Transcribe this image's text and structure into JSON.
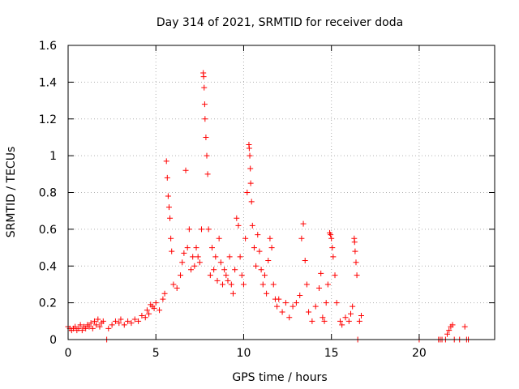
{
  "chart_data": {
    "type": "scatter",
    "title": "Day 314 of 2021, SRMTID for receiver doda",
    "xlabel": "GPS time / hours",
    "ylabel": "SRMTID / TECUs",
    "xlim": [
      0,
      24.3
    ],
    "ylim": [
      0,
      1.6
    ],
    "xticks": [
      0,
      5,
      10,
      15,
      20
    ],
    "xtick_labels": [
      "0",
      "5",
      "10",
      "15",
      "20"
    ],
    "yticks": [
      0,
      0.2,
      0.4,
      0.6,
      0.8,
      1,
      1.2,
      1.4,
      1.6
    ],
    "ytick_labels": [
      "0",
      "0.2",
      "0.4",
      "0.6",
      "0.8",
      "1",
      "1.2",
      "1.4",
      "1.6"
    ],
    "grid": true,
    "marker": "plus",
    "color": "#ff0000",
    "series": [
      {
        "name": "SRMTID",
        "points": [
          [
            0.0,
            0.07
          ],
          [
            0.1,
            0.06
          ],
          [
            0.2,
            0.05
          ],
          [
            0.3,
            0.06
          ],
          [
            0.4,
            0.07
          ],
          [
            0.5,
            0.05
          ],
          [
            0.6,
            0.06
          ],
          [
            0.7,
            0.08
          ],
          [
            0.8,
            0.05
          ],
          [
            0.9,
            0.07
          ],
          [
            1.0,
            0.06
          ],
          [
            1.1,
            0.08
          ],
          [
            1.2,
            0.07
          ],
          [
            1.3,
            0.09
          ],
          [
            1.4,
            0.06
          ],
          [
            1.5,
            0.1
          ],
          [
            1.6,
            0.08
          ],
          [
            1.7,
            0.11
          ],
          [
            1.8,
            0.07
          ],
          [
            1.9,
            0.09
          ],
          [
            2.0,
            0.1
          ],
          [
            2.2,
            0.0
          ],
          [
            2.3,
            0.06
          ],
          [
            2.5,
            0.08
          ],
          [
            2.7,
            0.1
          ],
          [
            2.9,
            0.09
          ],
          [
            3.0,
            0.11
          ],
          [
            3.2,
            0.08
          ],
          [
            3.4,
            0.1
          ],
          [
            3.6,
            0.09
          ],
          [
            3.8,
            0.11
          ],
          [
            4.0,
            0.1
          ],
          [
            4.2,
            0.13
          ],
          [
            4.4,
            0.12
          ],
          [
            4.5,
            0.16
          ],
          [
            4.6,
            0.14
          ],
          [
            4.7,
            0.19
          ],
          [
            4.8,
            0.18
          ],
          [
            4.9,
            0.17
          ],
          [
            5.0,
            0.2
          ],
          [
            5.2,
            0.16
          ],
          [
            5.4,
            0.22
          ],
          [
            5.5,
            0.25
          ],
          [
            5.6,
            0.97
          ],
          [
            5.65,
            0.88
          ],
          [
            5.7,
            0.78
          ],
          [
            5.75,
            0.72
          ],
          [
            5.8,
            0.66
          ],
          [
            5.85,
            0.55
          ],
          [
            5.9,
            0.48
          ],
          [
            6.0,
            0.3
          ],
          [
            6.2,
            0.28
          ],
          [
            6.4,
            0.35
          ],
          [
            6.5,
            0.42
          ],
          [
            6.6,
            0.47
          ],
          [
            6.7,
            0.92
          ],
          [
            6.8,
            0.5
          ],
          [
            6.9,
            0.6
          ],
          [
            7.0,
            0.38
          ],
          [
            7.1,
            0.45
          ],
          [
            7.2,
            0.4
          ],
          [
            7.3,
            0.5
          ],
          [
            7.4,
            0.45
          ],
          [
            7.5,
            0.42
          ],
          [
            7.6,
            0.6
          ],
          [
            7.7,
            1.45
          ],
          [
            7.72,
            1.43
          ],
          [
            7.75,
            1.37
          ],
          [
            7.78,
            1.28
          ],
          [
            7.8,
            1.2
          ],
          [
            7.85,
            1.1
          ],
          [
            7.9,
            1.0
          ],
          [
            7.95,
            0.9
          ],
          [
            8.0,
            0.6
          ],
          [
            8.1,
            0.35
          ],
          [
            8.2,
            0.5
          ],
          [
            8.3,
            0.38
          ],
          [
            8.4,
            0.45
          ],
          [
            8.5,
            0.32
          ],
          [
            8.6,
            0.55
          ],
          [
            8.7,
            0.42
          ],
          [
            8.8,
            0.3
          ],
          [
            8.9,
            0.38
          ],
          [
            9.0,
            0.35
          ],
          [
            9.1,
            0.32
          ],
          [
            9.2,
            0.45
          ],
          [
            9.3,
            0.3
          ],
          [
            9.4,
            0.25
          ],
          [
            9.5,
            0.38
          ],
          [
            9.6,
            0.66
          ],
          [
            9.7,
            0.62
          ],
          [
            9.8,
            0.45
          ],
          [
            9.9,
            0.35
          ],
          [
            10.0,
            0.3
          ],
          [
            10.1,
            0.55
          ],
          [
            10.2,
            0.8
          ],
          [
            10.3,
            1.06
          ],
          [
            10.32,
            1.04
          ],
          [
            10.35,
            1.0
          ],
          [
            10.38,
            0.93
          ],
          [
            10.4,
            0.85
          ],
          [
            10.45,
            0.75
          ],
          [
            10.5,
            0.62
          ],
          [
            10.6,
            0.5
          ],
          [
            10.7,
            0.4
          ],
          [
            10.8,
            0.57
          ],
          [
            10.9,
            0.48
          ],
          [
            11.0,
            0.38
          ],
          [
            11.1,
            0.3
          ],
          [
            11.2,
            0.35
          ],
          [
            11.3,
            0.25
          ],
          [
            11.4,
            0.43
          ],
          [
            11.5,
            0.55
          ],
          [
            11.6,
            0.5
          ],
          [
            11.7,
            0.3
          ],
          [
            11.8,
            0.22
          ],
          [
            11.9,
            0.18
          ],
          [
            12.0,
            0.22
          ],
          [
            12.2,
            0.15
          ],
          [
            12.4,
            0.2
          ],
          [
            12.6,
            0.12
          ],
          [
            12.8,
            0.18
          ],
          [
            13.0,
            0.2
          ],
          [
            13.2,
            0.24
          ],
          [
            13.3,
            0.55
          ],
          [
            13.4,
            0.63
          ],
          [
            13.5,
            0.43
          ],
          [
            13.6,
            0.3
          ],
          [
            13.7,
            0.15
          ],
          [
            13.9,
            0.1
          ],
          [
            14.1,
            0.18
          ],
          [
            14.3,
            0.28
          ],
          [
            14.4,
            0.36
          ],
          [
            14.5,
            0.12
          ],
          [
            14.6,
            0.1
          ],
          [
            14.7,
            0.2
          ],
          [
            14.8,
            0.3
          ],
          [
            14.9,
            0.58
          ],
          [
            14.95,
            0.57
          ],
          [
            15.0,
            0.55
          ],
          [
            15.05,
            0.5
          ],
          [
            15.1,
            0.45
          ],
          [
            15.2,
            0.35
          ],
          [
            15.3,
            0.2
          ],
          [
            15.5,
            0.1
          ],
          [
            15.6,
            0.08
          ],
          [
            15.8,
            0.12
          ],
          [
            16.0,
            0.1
          ],
          [
            16.1,
            0.14
          ],
          [
            16.2,
            0.18
          ],
          [
            16.3,
            0.55
          ],
          [
            16.32,
            0.53
          ],
          [
            16.35,
            0.48
          ],
          [
            16.4,
            0.42
          ],
          [
            16.45,
            0.35
          ],
          [
            16.5,
            0.0
          ],
          [
            16.6,
            0.1
          ],
          [
            16.7,
            0.13
          ],
          [
            20.0,
            0.0
          ],
          [
            21.1,
            0.0
          ],
          [
            21.2,
            0.0
          ],
          [
            21.3,
            0.0
          ],
          [
            21.5,
            0.0
          ],
          [
            21.6,
            0.03
          ],
          [
            21.7,
            0.05
          ],
          [
            21.8,
            0.07
          ],
          [
            21.9,
            0.08
          ],
          [
            22.0,
            0.0
          ],
          [
            22.3,
            0.0
          ],
          [
            22.6,
            0.07
          ],
          [
            22.7,
            0.0
          ],
          [
            22.8,
            0.0
          ]
        ]
      }
    ]
  }
}
